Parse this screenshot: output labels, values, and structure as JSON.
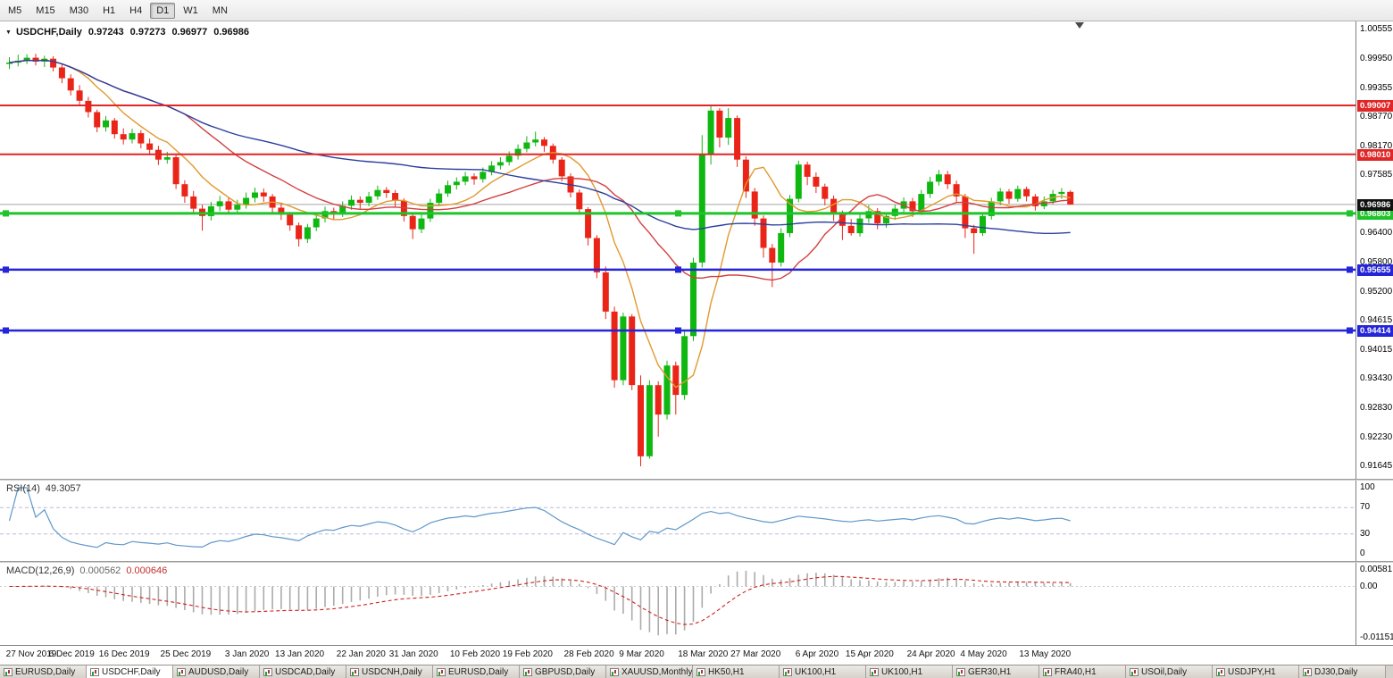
{
  "toolbar": {
    "timeframes": [
      "M5",
      "M15",
      "M30",
      "H1",
      "H4",
      "D1",
      "W1",
      "MN"
    ],
    "active": "D1"
  },
  "title": {
    "dropdown_icon": "▼",
    "symbol": "USDCHF,Daily",
    "open": "0.97243",
    "high": "0.97273",
    "low": "0.96977",
    "close": "0.96986"
  },
  "tabs": {
    "selected_index": 1,
    "items": [
      "EURUSD,Daily",
      "USDCHF,Daily",
      "AUDUSD,Daily",
      "USDCAD,Daily",
      "USDCNH,Daily",
      "EURUSD,Daily",
      "GBPUSD,Daily",
      "XAUUSD,Monthly",
      "HK50,H1",
      "UK100,H1",
      "UK100,H1",
      "GER30,H1",
      "FRA40,H1",
      "USOil,Daily",
      "USDJPY,H1",
      "DJ30,Daily"
    ]
  },
  "chart_data": {
    "type": "candlestick",
    "symbol": "USDCHF",
    "timeframe": "Daily",
    "colors": {
      "up": "#0fb711",
      "down": "#ea2518",
      "background": "#ffffff",
      "current_price_line": "#a6a6a6"
    },
    "y_axis": {
      "max": 1.00555,
      "min": 0.91645,
      "ticks": [
        "1.00555",
        "0.99950",
        "0.99355",
        "0.98770",
        "0.98170",
        "0.97585",
        "0.96990",
        "0.96400",
        "0.95800",
        "0.95200",
        "0.94615",
        "0.94015",
        "0.93430",
        "0.92830",
        "0.92230",
        "0.91645"
      ]
    },
    "current_price": {
      "value": 0.96986,
      "label": "0.96986",
      "badge_color": "#111111"
    },
    "hlines": [
      {
        "name": "resistance-upper",
        "value": 0.99007,
        "label": "0.99007",
        "color": "#e02626",
        "width": 2,
        "handles": false
      },
      {
        "name": "resistance-lower",
        "value": 0.9801,
        "label": "0.98010",
        "color": "#e02626",
        "width": 2,
        "handles": false
      },
      {
        "name": "support-green",
        "value": 0.96803,
        "label": "0.96803",
        "color": "#1fc32a",
        "width": 3,
        "handles": true
      },
      {
        "name": "support-blue-upper",
        "value": 0.95655,
        "label": "0.95655",
        "color": "#2424d8",
        "width": 2.5,
        "handles": true
      },
      {
        "name": "support-blue-lower",
        "value": 0.94414,
        "label": "0.94414",
        "color": "#2424d8",
        "width": 2.5,
        "handles": true
      }
    ],
    "moving_averages": [
      {
        "period": 8,
        "color": "#e09a2f"
      },
      {
        "period": 21,
        "color": "#d24040"
      },
      {
        "period": 55,
        "color": "#2b3f9e"
      }
    ],
    "dates": [
      {
        "i": 0,
        "label": "27 Nov 2019"
      },
      {
        "i": 7,
        "label": "6 Dec 2019"
      },
      {
        "i": 13,
        "label": "16 Dec 2019"
      },
      {
        "i": 20,
        "label": "25 Dec 2019"
      },
      {
        "i": 27,
        "label": "3 Jan 2020"
      },
      {
        "i": 33,
        "label": "13 Jan 2020"
      },
      {
        "i": 40,
        "label": "22 Jan 2020"
      },
      {
        "i": 46,
        "label": "31 Jan 2020"
      },
      {
        "i": 53,
        "label": "10 Feb 2020"
      },
      {
        "i": 59,
        "label": "19 Feb 2020"
      },
      {
        "i": 66,
        "label": "28 Feb 2020"
      },
      {
        "i": 72,
        "label": "9 Mar 2020"
      },
      {
        "i": 79,
        "label": "18 Mar 2020"
      },
      {
        "i": 85,
        "label": "27 Mar 2020"
      },
      {
        "i": 92,
        "label": "6 Apr 2020"
      },
      {
        "i": 98,
        "label": "15 Apr 2020"
      },
      {
        "i": 105,
        "label": "24 Apr 2020"
      },
      {
        "i": 111,
        "label": "4 May 2020"
      },
      {
        "i": 118,
        "label": "13 May 2020"
      }
    ],
    "candles": [
      [
        0.9985,
        0.9999,
        0.9975,
        0.9988
      ],
      [
        0.9988,
        1.0004,
        0.998,
        0.9992
      ],
      [
        0.9992,
        1.0005,
        0.9985,
        0.9998
      ],
      [
        0.9998,
        1.0006,
        0.9982,
        0.999
      ],
      [
        0.999,
        1.0002,
        0.9979,
        0.9996
      ],
      [
        0.9996,
        1.0001,
        0.997,
        0.9978
      ],
      [
        0.9978,
        0.9985,
        0.9946,
        0.9956
      ],
      [
        0.9956,
        0.9964,
        0.9921,
        0.9931
      ],
      [
        0.9931,
        0.9942,
        0.99,
        0.991
      ],
      [
        0.991,
        0.9918,
        0.9876,
        0.9887
      ],
      [
        0.9887,
        0.9892,
        0.9846,
        0.9856
      ],
      [
        0.9856,
        0.9879,
        0.9847,
        0.987
      ],
      [
        0.987,
        0.9875,
        0.9833,
        0.9842
      ],
      [
        0.9842,
        0.9854,
        0.9821,
        0.9831
      ],
      [
        0.9831,
        0.9853,
        0.9823,
        0.9844
      ],
      [
        0.9844,
        0.985,
        0.9813,
        0.9823
      ],
      [
        0.9823,
        0.9833,
        0.9799,
        0.981
      ],
      [
        0.981,
        0.9818,
        0.9779,
        0.979
      ],
      [
        0.979,
        0.9806,
        0.9782,
        0.9795
      ],
      [
        0.9795,
        0.9801,
        0.973,
        0.974
      ],
      [
        0.974,
        0.9748,
        0.9702,
        0.9715
      ],
      [
        0.9715,
        0.9726,
        0.9679,
        0.969
      ],
      [
        0.969,
        0.9698,
        0.9645,
        0.9675
      ],
      [
        0.9675,
        0.9704,
        0.9666,
        0.9695
      ],
      [
        0.9695,
        0.9716,
        0.9685,
        0.9705
      ],
      [
        0.9705,
        0.9712,
        0.9678,
        0.9688
      ],
      [
        0.9688,
        0.9708,
        0.968,
        0.9698
      ],
      [
        0.9698,
        0.9723,
        0.969,
        0.9712
      ],
      [
        0.9712,
        0.9733,
        0.9703,
        0.9723
      ],
      [
        0.9723,
        0.9731,
        0.9704,
        0.9715
      ],
      [
        0.9715,
        0.972,
        0.9682,
        0.9692
      ],
      [
        0.9692,
        0.97,
        0.9667,
        0.9678
      ],
      [
        0.9678,
        0.9683,
        0.9645,
        0.9656
      ],
      [
        0.9656,
        0.9662,
        0.9613,
        0.9628
      ],
      [
        0.9628,
        0.9659,
        0.962,
        0.9652
      ],
      [
        0.9652,
        0.9679,
        0.9644,
        0.967
      ],
      [
        0.967,
        0.9694,
        0.9662,
        0.9685
      ],
      [
        0.9685,
        0.9692,
        0.9668,
        0.968
      ],
      [
        0.968,
        0.9705,
        0.9673,
        0.9696
      ],
      [
        0.9696,
        0.9717,
        0.9688,
        0.9708
      ],
      [
        0.9708,
        0.9715,
        0.969,
        0.9702
      ],
      [
        0.9702,
        0.9724,
        0.9695,
        0.9715
      ],
      [
        0.9715,
        0.9737,
        0.9708,
        0.9728
      ],
      [
        0.9728,
        0.9734,
        0.9712,
        0.9722
      ],
      [
        0.9722,
        0.9728,
        0.9695,
        0.9706
      ],
      [
        0.9706,
        0.9711,
        0.9664,
        0.9675
      ],
      [
        0.9675,
        0.9681,
        0.9628,
        0.9648
      ],
      [
        0.9648,
        0.9679,
        0.964,
        0.967
      ],
      [
        0.967,
        0.971,
        0.9663,
        0.9702
      ],
      [
        0.9702,
        0.973,
        0.9695,
        0.9721
      ],
      [
        0.9721,
        0.9747,
        0.9714,
        0.9738
      ],
      [
        0.9738,
        0.9754,
        0.9729,
        0.9745
      ],
      [
        0.9745,
        0.9765,
        0.9738,
        0.9756
      ],
      [
        0.9756,
        0.9762,
        0.9739,
        0.975
      ],
      [
        0.975,
        0.9774,
        0.9743,
        0.9765
      ],
      [
        0.9765,
        0.9787,
        0.9758,
        0.9778
      ],
      [
        0.9778,
        0.9795,
        0.977,
        0.9785
      ],
      [
        0.9785,
        0.9807,
        0.9778,
        0.9798
      ],
      [
        0.9798,
        0.9821,
        0.979,
        0.9812
      ],
      [
        0.9812,
        0.9838,
        0.9805,
        0.9825
      ],
      [
        0.9825,
        0.9847,
        0.9817,
        0.9831
      ],
      [
        0.9831,
        0.9836,
        0.9806,
        0.9818
      ],
      [
        0.9818,
        0.9823,
        0.9782,
        0.979
      ],
      [
        0.979,
        0.9795,
        0.9746,
        0.9756
      ],
      [
        0.9756,
        0.9762,
        0.9713,
        0.9723
      ],
      [
        0.9723,
        0.9729,
        0.9678,
        0.9689
      ],
      [
        0.9689,
        0.9693,
        0.9615,
        0.963
      ],
      [
        0.963,
        0.9636,
        0.9548,
        0.956
      ],
      [
        0.956,
        0.9572,
        0.9465,
        0.948
      ],
      [
        0.948,
        0.949,
        0.9325,
        0.934
      ],
      [
        0.934,
        0.9478,
        0.933,
        0.947
      ],
      [
        0.947,
        0.9475,
        0.932,
        0.933
      ],
      [
        0.933,
        0.935,
        0.91645,
        0.9185
      ],
      [
        0.9185,
        0.934,
        0.918,
        0.933
      ],
      [
        0.933,
        0.9338,
        0.9225,
        0.927
      ],
      [
        0.927,
        0.938,
        0.926,
        0.937
      ],
      [
        0.937,
        0.9378,
        0.927,
        0.931
      ],
      [
        0.931,
        0.944,
        0.93,
        0.943
      ],
      [
        0.943,
        0.959,
        0.942,
        0.958
      ],
      [
        0.958,
        0.984,
        0.957,
        0.98
      ],
      [
        0.98,
        0.9899,
        0.978,
        0.989
      ],
      [
        0.989,
        0.9895,
        0.9815,
        0.9835
      ],
      [
        0.9835,
        0.9895,
        0.982,
        0.9875
      ],
      [
        0.9875,
        0.988,
        0.9775,
        0.979
      ],
      [
        0.979,
        0.9797,
        0.9712,
        0.9725
      ],
      [
        0.9725,
        0.9732,
        0.9655,
        0.967
      ],
      [
        0.967,
        0.9676,
        0.959,
        0.961
      ],
      [
        0.961,
        0.9618,
        0.953,
        0.958
      ],
      [
        0.958,
        0.965,
        0.9572,
        0.964
      ],
      [
        0.964,
        0.9718,
        0.9632,
        0.971
      ],
      [
        0.971,
        0.9788,
        0.9703,
        0.978
      ],
      [
        0.978,
        0.9786,
        0.9738,
        0.9755
      ],
      [
        0.9755,
        0.9764,
        0.9722,
        0.9735
      ],
      [
        0.9735,
        0.9741,
        0.9697,
        0.971
      ],
      [
        0.971,
        0.9717,
        0.9665,
        0.968
      ],
      [
        0.968,
        0.9686,
        0.9626,
        0.9655
      ],
      [
        0.9655,
        0.9669,
        0.9635,
        0.964
      ],
      [
        0.964,
        0.9678,
        0.9633,
        0.967
      ],
      [
        0.967,
        0.9697,
        0.9661,
        0.9685
      ],
      [
        0.9685,
        0.9691,
        0.9648,
        0.966
      ],
      [
        0.966,
        0.9682,
        0.9651,
        0.9675
      ],
      [
        0.9675,
        0.9698,
        0.9667,
        0.969
      ],
      [
        0.969,
        0.9713,
        0.9682,
        0.9705
      ],
      [
        0.9705,
        0.9712,
        0.9673,
        0.9685
      ],
      [
        0.9685,
        0.9728,
        0.9677,
        0.972
      ],
      [
        0.972,
        0.9755,
        0.9712,
        0.9745
      ],
      [
        0.9745,
        0.9769,
        0.9737,
        0.976
      ],
      [
        0.976,
        0.9767,
        0.973,
        0.974
      ],
      [
        0.974,
        0.9747,
        0.9704,
        0.9715
      ],
      [
        0.9715,
        0.972,
        0.963,
        0.965
      ],
      [
        0.965,
        0.9657,
        0.9598,
        0.964
      ],
      [
        0.964,
        0.9682,
        0.9634,
        0.9675
      ],
      [
        0.9675,
        0.9712,
        0.9668,
        0.9705
      ],
      [
        0.9705,
        0.9732,
        0.9697,
        0.9725
      ],
      [
        0.9725,
        0.973,
        0.97,
        0.971
      ],
      [
        0.971,
        0.9737,
        0.9704,
        0.973
      ],
      [
        0.973,
        0.9735,
        0.9705,
        0.9715
      ],
      [
        0.9715,
        0.972,
        0.9686,
        0.9695
      ],
      [
        0.9695,
        0.9715,
        0.9689,
        0.9705
      ],
      [
        0.9705,
        0.9728,
        0.9699,
        0.972
      ],
      [
        0.972,
        0.9732,
        0.971,
        0.9724
      ],
      [
        0.97243,
        0.97273,
        0.96977,
        0.96986
      ]
    ],
    "rsi": {
      "label": "RSI(14)",
      "current": "49.3057",
      "period": 14,
      "levels": [
        70,
        30
      ],
      "axis_labels": [
        "100",
        "70",
        "30",
        "0"
      ],
      "color": "#5f97c9",
      "level_color": "#bcbcdc"
    },
    "macd": {
      "label": "MACD(12,26,9)",
      "current_main": "0.000562",
      "current_signal": "0.000646",
      "fast": 12,
      "slow": 26,
      "signal": 9,
      "axis_top": "0.00581",
      "axis_zero": "0.00",
      "axis_bottom": "-0.01151",
      "histogram_color": "#ababab",
      "signal_color": "#cf1f1f"
    }
  }
}
